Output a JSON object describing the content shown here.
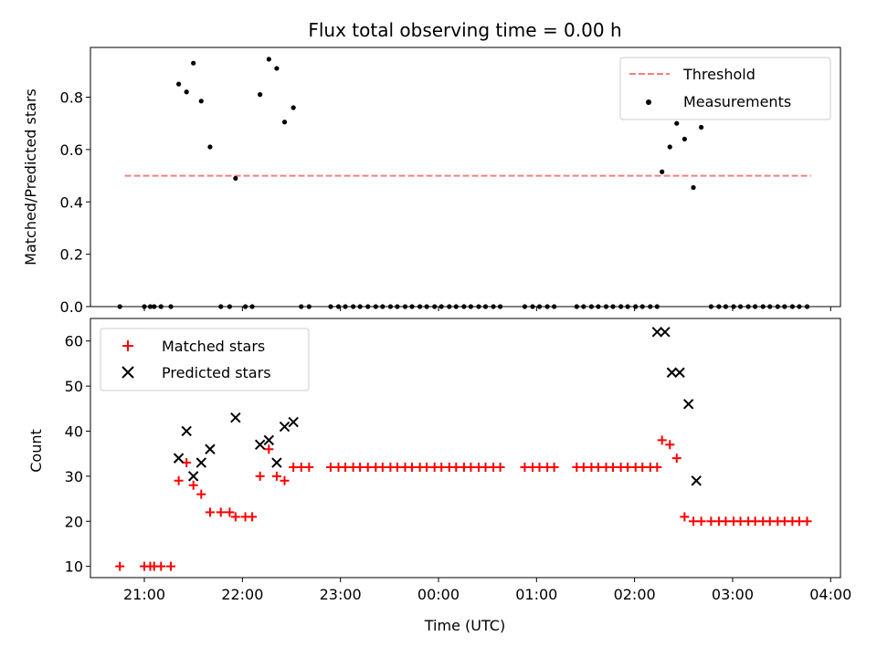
{
  "chart_data": [
    {
      "type": "scatter",
      "title": "Flux total observing time = 0.00 h",
      "xlabel": "",
      "ylabel": "Matched/Predicted stars",
      "ylim": [
        0,
        0.99
      ],
      "yticks": [
        "0.0",
        "0.2",
        "0.4",
        "0.6",
        "0.8"
      ],
      "ytick_values": [
        0,
        0.2,
        0.4,
        0.6,
        0.8
      ],
      "xlim": [
        -0.55,
        7.1
      ],
      "xtick_values": [
        0,
        1,
        2,
        3,
        4,
        5,
        6,
        7
      ],
      "threshold": {
        "name": "Threshold",
        "y": 0.5,
        "x_start": -0.2,
        "x_end": 6.8,
        "color": "#f08080"
      },
      "legend_position": "top-right",
      "series": [
        {
          "name": "Measurements",
          "marker": "dot",
          "color": "#000000",
          "points": [
            [
              -0.25,
              0
            ],
            [
              0.0,
              0
            ],
            [
              0.06,
              0
            ],
            [
              0.1,
              0
            ],
            [
              0.17,
              0
            ],
            [
              0.27,
              0
            ],
            [
              0.35,
              0.85
            ],
            [
              0.43,
              0.82
            ],
            [
              0.5,
              0.93
            ],
            [
              0.58,
              0.785
            ],
            [
              0.67,
              0.61
            ],
            [
              0.78,
              0
            ],
            [
              0.87,
              0
            ],
            [
              0.93,
              0.49
            ],
            [
              1.03,
              0
            ],
            [
              1.1,
              0
            ],
            [
              1.18,
              0.81
            ],
            [
              1.27,
              0.945
            ],
            [
              1.35,
              0.91
            ],
            [
              1.43,
              0.705
            ],
            [
              1.52,
              0.76
            ],
            [
              1.6,
              0
            ],
            [
              1.68,
              0
            ],
            [
              1.9,
              0
            ],
            [
              1.98,
              0
            ],
            [
              2.05,
              0
            ],
            [
              2.13,
              0
            ],
            [
              2.2,
              0
            ],
            [
              2.28,
              0
            ],
            [
              2.36,
              0
            ],
            [
              2.43,
              0
            ],
            [
              2.51,
              0
            ],
            [
              2.58,
              0
            ],
            [
              2.66,
              0
            ],
            [
              2.73,
              0
            ],
            [
              2.81,
              0
            ],
            [
              2.88,
              0
            ],
            [
              2.96,
              0
            ],
            [
              3.03,
              0
            ],
            [
              3.11,
              0
            ],
            [
              3.18,
              0
            ],
            [
              3.26,
              0
            ],
            [
              3.33,
              0
            ],
            [
              3.41,
              0
            ],
            [
              3.48,
              0
            ],
            [
              3.56,
              0
            ],
            [
              3.63,
              0
            ],
            [
              3.88,
              0
            ],
            [
              3.96,
              0
            ],
            [
              4.03,
              0
            ],
            [
              4.11,
              0
            ],
            [
              4.18,
              0
            ],
            [
              4.41,
              0
            ],
            [
              4.48,
              0
            ],
            [
              4.56,
              0
            ],
            [
              4.63,
              0
            ],
            [
              4.71,
              0
            ],
            [
              4.78,
              0
            ],
            [
              4.86,
              0
            ],
            [
              4.93,
              0
            ],
            [
              5.01,
              0
            ],
            [
              5.08,
              0
            ],
            [
              5.16,
              0
            ],
            [
              5.23,
              0
            ],
            [
              5.28,
              0.515
            ],
            [
              5.36,
              0.61
            ],
            [
              5.43,
              0.7
            ],
            [
              5.51,
              0.64
            ],
            [
              5.6,
              0.455
            ],
            [
              5.68,
              0.685
            ],
            [
              5.78,
              0
            ],
            [
              5.86,
              0
            ],
            [
              5.93,
              0
            ],
            [
              6.01,
              0
            ],
            [
              6.08,
              0
            ],
            [
              6.16,
              0
            ],
            [
              6.23,
              0
            ],
            [
              6.31,
              0
            ],
            [
              6.38,
              0
            ],
            [
              6.46,
              0
            ],
            [
              6.53,
              0
            ],
            [
              6.61,
              0
            ],
            [
              6.68,
              0
            ],
            [
              6.76,
              0
            ]
          ]
        }
      ]
    },
    {
      "type": "scatter",
      "title": "",
      "xlabel": "Time (UTC)",
      "ylabel": "Count",
      "ylim": [
        7.5,
        65
      ],
      "yticks": [
        "10",
        "20",
        "30",
        "40",
        "50",
        "60"
      ],
      "ytick_values": [
        10,
        20,
        30,
        40,
        50,
        60
      ],
      "xlim": [
        -0.55,
        7.1
      ],
      "xticks": [
        "21:00",
        "22:00",
        "23:00",
        "00:00",
        "01:00",
        "02:00",
        "03:00",
        "04:00"
      ],
      "xtick_values": [
        0,
        1,
        2,
        3,
        4,
        5,
        6,
        7
      ],
      "legend_position": "top-left",
      "series": [
        {
          "name": "Matched stars",
          "marker": "plus",
          "color": "#ff0000",
          "points": [
            [
              -0.25,
              10
            ],
            [
              0.0,
              10
            ],
            [
              0.06,
              10
            ],
            [
              0.1,
              10
            ],
            [
              0.17,
              10
            ],
            [
              0.27,
              10
            ],
            [
              0.35,
              29
            ],
            [
              0.43,
              33
            ],
            [
              0.5,
              28
            ],
            [
              0.58,
              26
            ],
            [
              0.67,
              22
            ],
            [
              0.78,
              22
            ],
            [
              0.87,
              22
            ],
            [
              0.93,
              21
            ],
            [
              1.03,
              21
            ],
            [
              1.1,
              21
            ],
            [
              1.18,
              30
            ],
            [
              1.27,
              36
            ],
            [
              1.35,
              30
            ],
            [
              1.43,
              29
            ],
            [
              1.52,
              32
            ],
            [
              1.6,
              32
            ],
            [
              1.68,
              32
            ],
            [
              1.9,
              32
            ],
            [
              1.98,
              32
            ],
            [
              2.05,
              32
            ],
            [
              2.13,
              32
            ],
            [
              2.2,
              32
            ],
            [
              2.28,
              32
            ],
            [
              2.36,
              32
            ],
            [
              2.43,
              32
            ],
            [
              2.51,
              32
            ],
            [
              2.58,
              32
            ],
            [
              2.66,
              32
            ],
            [
              2.73,
              32
            ],
            [
              2.81,
              32
            ],
            [
              2.88,
              32
            ],
            [
              2.96,
              32
            ],
            [
              3.03,
              32
            ],
            [
              3.11,
              32
            ],
            [
              3.18,
              32
            ],
            [
              3.26,
              32
            ],
            [
              3.33,
              32
            ],
            [
              3.41,
              32
            ],
            [
              3.48,
              32
            ],
            [
              3.56,
              32
            ],
            [
              3.63,
              32
            ],
            [
              3.88,
              32
            ],
            [
              3.96,
              32
            ],
            [
              4.03,
              32
            ],
            [
              4.11,
              32
            ],
            [
              4.18,
              32
            ],
            [
              4.41,
              32
            ],
            [
              4.48,
              32
            ],
            [
              4.56,
              32
            ],
            [
              4.63,
              32
            ],
            [
              4.71,
              32
            ],
            [
              4.78,
              32
            ],
            [
              4.86,
              32
            ],
            [
              4.93,
              32
            ],
            [
              5.01,
              32
            ],
            [
              5.08,
              32
            ],
            [
              5.16,
              32
            ],
            [
              5.23,
              32
            ],
            [
              5.28,
              38
            ],
            [
              5.36,
              37
            ],
            [
              5.43,
              34
            ],
            [
              5.51,
              21
            ],
            [
              5.6,
              20
            ],
            [
              5.68,
              20
            ],
            [
              5.78,
              20
            ],
            [
              5.86,
              20
            ],
            [
              5.93,
              20
            ],
            [
              6.01,
              20
            ],
            [
              6.08,
              20
            ],
            [
              6.16,
              20
            ],
            [
              6.23,
              20
            ],
            [
              6.31,
              20
            ],
            [
              6.38,
              20
            ],
            [
              6.46,
              20
            ],
            [
              6.53,
              20
            ],
            [
              6.61,
              20
            ],
            [
              6.68,
              20
            ],
            [
              6.76,
              20
            ]
          ]
        },
        {
          "name": "Predicted stars",
          "marker": "x",
          "color": "#000000",
          "points": [
            [
              0.35,
              34
            ],
            [
              0.43,
              40
            ],
            [
              0.5,
              30
            ],
            [
              0.58,
              33
            ],
            [
              0.67,
              36
            ],
            [
              0.93,
              43
            ],
            [
              1.18,
              37
            ],
            [
              1.27,
              38
            ],
            [
              1.35,
              33
            ],
            [
              1.43,
              41
            ],
            [
              1.52,
              42
            ],
            [
              5.23,
              62
            ],
            [
              5.31,
              62
            ],
            [
              5.38,
              53
            ],
            [
              5.46,
              53
            ],
            [
              5.55,
              46
            ],
            [
              5.63,
              29
            ]
          ]
        }
      ]
    }
  ]
}
